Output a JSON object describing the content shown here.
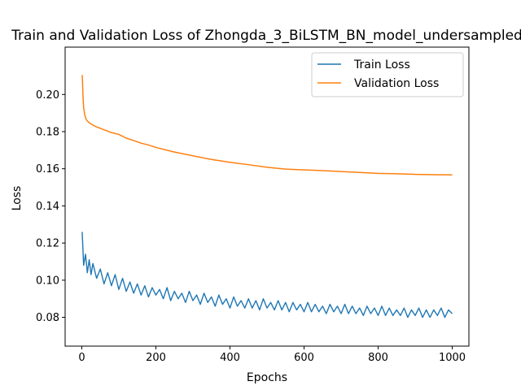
{
  "chart_data": {
    "type": "line",
    "title": "Train and Validation Loss of Zhongda_3_BiLSTM_BN_model_undersampled",
    "xlabel": "Epochs",
    "ylabel": "Loss",
    "xlim": [
      -45,
      1045
    ],
    "ylim": [
      0.0645,
      0.2255
    ],
    "x_ticks": [
      0,
      200,
      400,
      600,
      800,
      1000
    ],
    "y_ticks": [
      0.08,
      0.1,
      0.12,
      0.14,
      0.16,
      0.18,
      0.2
    ],
    "y_tick_labels": [
      "0.08",
      "0.10",
      "0.12",
      "0.14",
      "0.16",
      "0.18",
      "0.20"
    ],
    "grid": false,
    "legend_position": "top-right",
    "series": [
      {
        "name": "Train Loss",
        "color": "#1f77b4",
        "x": [
          1,
          5,
          10,
          15,
          20,
          25,
          30,
          40,
          50,
          60,
          70,
          80,
          90,
          100,
          110,
          120,
          130,
          140,
          150,
          160,
          170,
          180,
          190,
          200,
          210,
          220,
          230,
          240,
          250,
          260,
          270,
          280,
          290,
          300,
          310,
          320,
          330,
          340,
          350,
          360,
          370,
          380,
          390,
          400,
          410,
          420,
          430,
          440,
          450,
          460,
          470,
          480,
          490,
          500,
          510,
          520,
          530,
          540,
          550,
          560,
          570,
          580,
          590,
          600,
          610,
          620,
          630,
          640,
          650,
          660,
          670,
          680,
          690,
          700,
          710,
          720,
          730,
          740,
          750,
          760,
          770,
          780,
          790,
          800,
          810,
          820,
          830,
          840,
          850,
          860,
          870,
          880,
          890,
          900,
          910,
          920,
          930,
          940,
          950,
          960,
          970,
          980,
          990,
          1000
        ],
        "y": [
          0.126,
          0.108,
          0.114,
          0.104,
          0.111,
          0.103,
          0.109,
          0.101,
          0.106,
          0.098,
          0.104,
          0.097,
          0.103,
          0.095,
          0.101,
          0.094,
          0.099,
          0.093,
          0.098,
          0.092,
          0.097,
          0.091,
          0.096,
          0.092,
          0.095,
          0.09,
          0.096,
          0.089,
          0.094,
          0.09,
          0.093,
          0.088,
          0.094,
          0.089,
          0.092,
          0.087,
          0.093,
          0.088,
          0.091,
          0.086,
          0.092,
          0.087,
          0.09,
          0.085,
          0.091,
          0.086,
          0.089,
          0.085,
          0.09,
          0.085,
          0.089,
          0.084,
          0.09,
          0.085,
          0.088,
          0.084,
          0.089,
          0.084,
          0.088,
          0.083,
          0.088,
          0.084,
          0.087,
          0.083,
          0.088,
          0.083,
          0.087,
          0.083,
          0.086,
          0.082,
          0.087,
          0.083,
          0.086,
          0.082,
          0.087,
          0.082,
          0.086,
          0.082,
          0.085,
          0.081,
          0.086,
          0.082,
          0.085,
          0.081,
          0.086,
          0.081,
          0.085,
          0.081,
          0.084,
          0.081,
          0.085,
          0.08,
          0.084,
          0.081,
          0.085,
          0.08,
          0.084,
          0.08,
          0.084,
          0.081,
          0.085,
          0.08,
          0.084,
          0.082
        ]
      },
      {
        "name": "Validation Loss",
        "color": "#ff7f0e",
        "x": [
          1,
          2,
          3,
          5,
          8,
          12,
          16,
          20,
          30,
          40,
          50,
          60,
          80,
          100,
          120,
          140,
          160,
          180,
          200,
          250,
          300,
          350,
          400,
          450,
          500,
          550,
          600,
          650,
          700,
          750,
          800,
          850,
          900,
          950,
          1000
        ],
        "y": [
          0.2105,
          0.207,
          0.2,
          0.193,
          0.189,
          0.1865,
          0.1855,
          0.1848,
          0.1835,
          0.1825,
          0.1818,
          0.181,
          0.1795,
          0.1785,
          0.1765,
          0.1752,
          0.1738,
          0.1728,
          0.1715,
          0.169,
          0.167,
          0.165,
          0.1635,
          0.1622,
          0.1608,
          0.1598,
          0.1594,
          0.159,
          0.1585,
          0.158,
          0.1575,
          0.1573,
          0.157,
          0.1568,
          0.1567
        ]
      }
    ]
  }
}
